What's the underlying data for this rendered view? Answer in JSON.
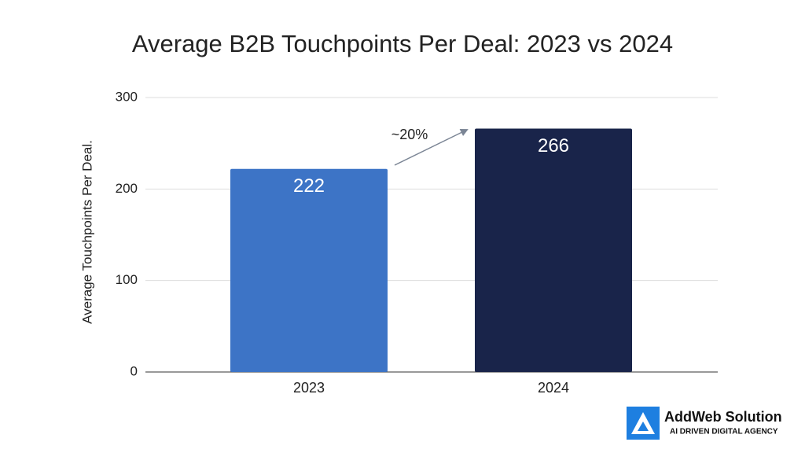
{
  "chart_data": {
    "type": "bar",
    "title": "Average B2B Touchpoints Per Deal: 2023 vs 2024",
    "y_label": "Average Touchpoints Per Deal.",
    "categories": [
      "2023",
      "2024"
    ],
    "values": [
      222,
      266
    ],
    "colors": [
      "#3d74c6",
      "#19244a"
    ],
    "ylim": [
      0,
      300
    ],
    "yticks": [
      0,
      100,
      200,
      300
    ],
    "grid": true,
    "annotation": "~20%"
  },
  "branding": {
    "name": "AddWeb Solution",
    "tagline": "AI DRIVEN DIGITAL AGENCY"
  }
}
